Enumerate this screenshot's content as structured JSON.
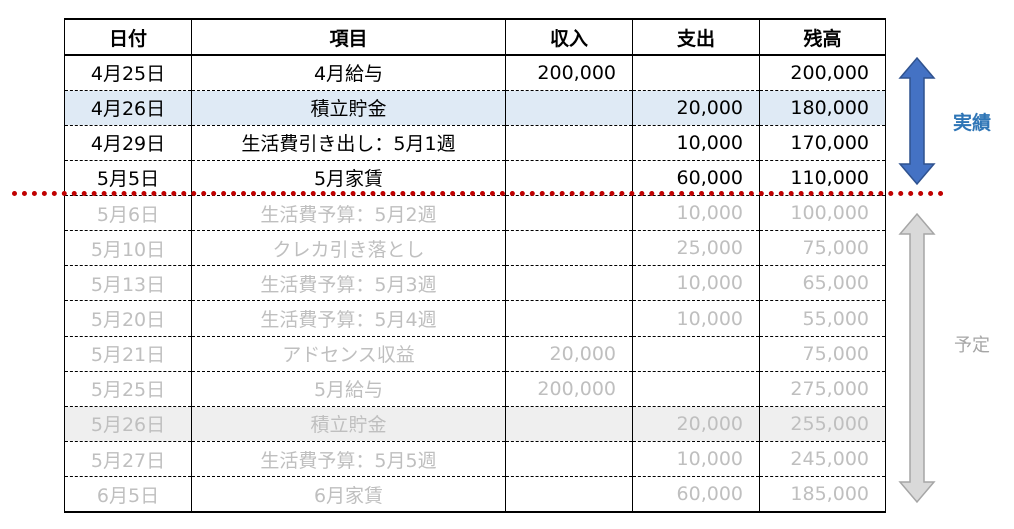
{
  "headers": {
    "date": "日付",
    "item": "項目",
    "income": "収入",
    "expense": "支出",
    "balance": "残高"
  },
  "rows": [
    {
      "date": "4月25日",
      "item": "4月給与",
      "income": "200,000",
      "expense": "",
      "balance": "200,000"
    },
    {
      "date": "4月26日",
      "item": "積立貯金",
      "income": "",
      "expense": "20,000",
      "balance": "180,000"
    },
    {
      "date": "4月29日",
      "item": "生活費引き出し：5月1週",
      "income": "",
      "expense": "10,000",
      "balance": "170,000"
    },
    {
      "date": "5月5日",
      "item": "5月家賃",
      "income": "",
      "expense": "60,000",
      "balance": "110,000"
    },
    {
      "date": "5月6日",
      "item": "生活費予算：5月2週",
      "income": "",
      "expense": "10,000",
      "balance": "100,000"
    },
    {
      "date": "5月10日",
      "item": "クレカ引き落とし",
      "income": "",
      "expense": "25,000",
      "balance": "75,000"
    },
    {
      "date": "5月13日",
      "item": "生活費予算：5月3週",
      "income": "",
      "expense": "10,000",
      "balance": "65,000"
    },
    {
      "date": "5月20日",
      "item": "生活費予算：5月4週",
      "income": "",
      "expense": "10,000",
      "balance": "55,000"
    },
    {
      "date": "5月21日",
      "item": "アドセンス収益",
      "income": "20,000",
      "expense": "",
      "balance": "75,000"
    },
    {
      "date": "5月25日",
      "item": "5月給与",
      "income": "200,000",
      "expense": "",
      "balance": "275,000"
    },
    {
      "date": "5月26日",
      "item": "積立貯金",
      "income": "",
      "expense": "20,000",
      "balance": "255,000"
    },
    {
      "date": "5月27日",
      "item": "生活費予算：5月5週",
      "income": "",
      "expense": "10,000",
      "balance": "245,000"
    },
    {
      "date": "6月5日",
      "item": "6月家賃",
      "income": "",
      "expense": "60,000",
      "balance": "185,000"
    }
  ],
  "labels": {
    "actual": "実績",
    "planned": "予定"
  },
  "colors": {
    "actual_accent": "#2e75b6",
    "planned_gray": "#bfbfbf",
    "cutoff_line": "#c00000",
    "actual_highlight": "#dfeaf5",
    "planned_highlight": "#efefef"
  },
  "icons": {
    "actual_range": "double-arrow-vertical-blue-icon",
    "planned_range": "double-arrow-vertical-gray-icon"
  }
}
